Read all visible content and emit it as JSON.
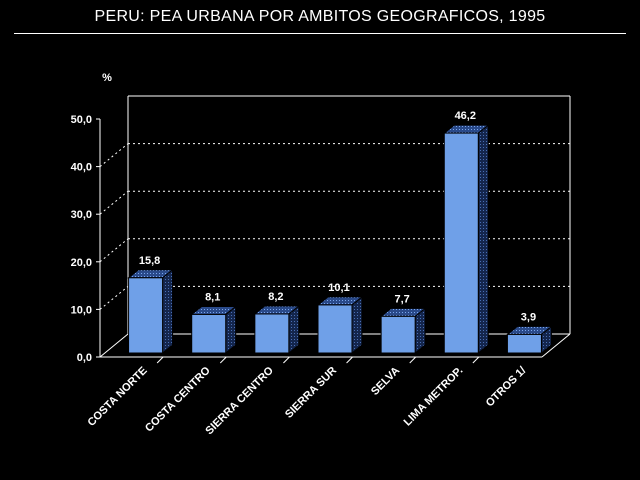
{
  "chart_data": {
    "type": "bar",
    "title": "PERU: PEA URBANA POR AMBITOS GEOGRAFICOS, 1995",
    "ylabel": "%",
    "ylim": [
      0,
      50
    ],
    "y_ticks": [
      "0,0",
      "10,0",
      "20,0",
      "30,0",
      "40,0",
      "50,0"
    ],
    "categories": [
      "COSTA NORTE",
      "COSTA CENTRO",
      "SIERRA CENTRO",
      "SIERRA SUR",
      "SELVA",
      "LIMA METROP.",
      "OTROS 1/"
    ],
    "values": [
      15.8,
      8.1,
      8.2,
      10.1,
      7.7,
      46.2,
      3.9
    ],
    "data_labels": [
      "15,8",
      "8,1",
      "8,2",
      "10,1",
      "7,7",
      "46,2",
      "3,9"
    ],
    "grid": true,
    "bar_color": "#6fa0e8",
    "bar_top_color": "#3d5fa0",
    "bar_side_color": "#1e3466",
    "background": "#000000"
  }
}
